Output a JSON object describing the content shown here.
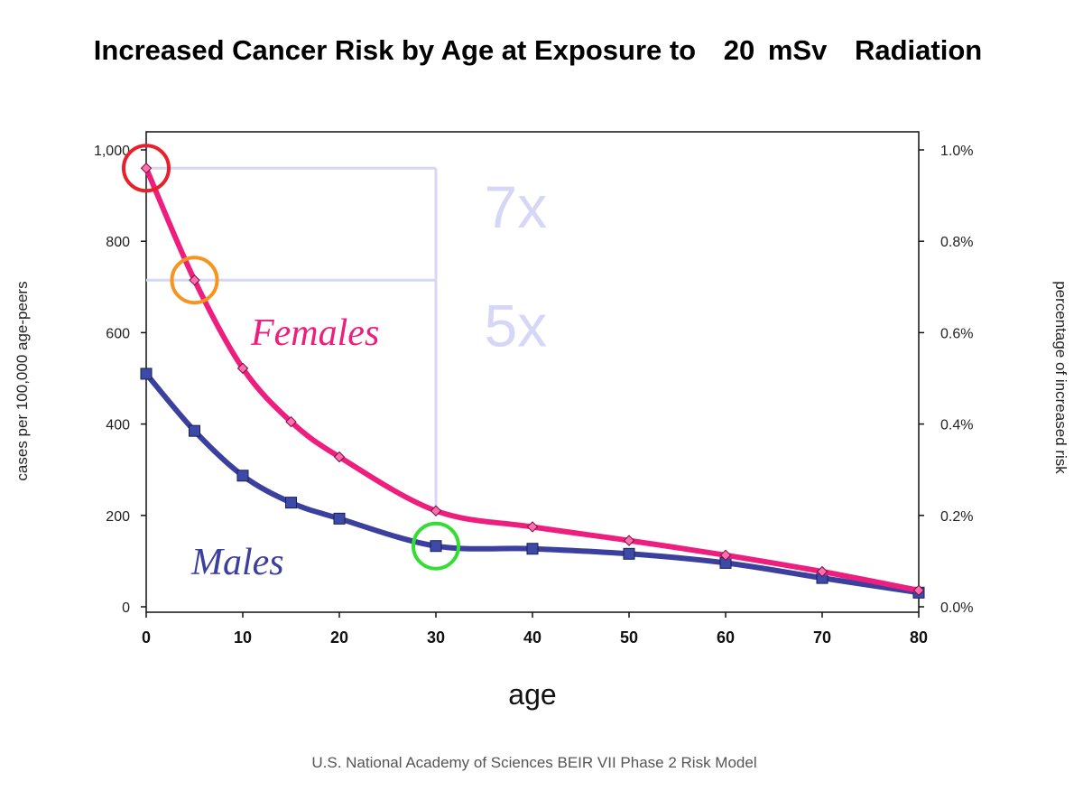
{
  "chart_data": {
    "type": "line",
    "title_parts": [
      "Increased Cancer Risk by Age at Exposure to",
      "20",
      "mSv",
      "Radiation"
    ],
    "xlabel": "age",
    "ylabel_left": "cases per 100,000 age-peers",
    "ylabel_right": "percentage of increased risk",
    "source": "U.S. National Academy of Sciences BEIR VII Phase 2 Risk Model",
    "xlim": [
      0,
      80
    ],
    "ylim": [
      0,
      1000
    ],
    "x_ticks": [
      "0",
      "10",
      "20",
      "30",
      "40",
      "50",
      "60",
      "70",
      "80"
    ],
    "y_left_ticks": [
      {
        "value": 0,
        "label": "0"
      },
      {
        "value": 200,
        "label": "200"
      },
      {
        "value": 400,
        "label": "400"
      },
      {
        "value": 600,
        "label": "600"
      },
      {
        "value": 800,
        "label": "800"
      },
      {
        "value": 1000,
        "label": "1,000"
      }
    ],
    "y_right_ticks": [
      {
        "value": 0,
        "label": "0.0%"
      },
      {
        "value": 200,
        "label": "0.2%"
      },
      {
        "value": 400,
        "label": "0.4%"
      },
      {
        "value": 600,
        "label": "0.6%"
      },
      {
        "value": 800,
        "label": "0.8%"
      },
      {
        "value": 1000,
        "label": "1.0%"
      }
    ],
    "series": [
      {
        "name": "Females",
        "color": "#ee1e7f",
        "marker": "diamond",
        "x": [
          0,
          5,
          10,
          15,
          20,
          30,
          40,
          50,
          60,
          70,
          80
        ],
        "y": [
          960,
          715,
          522,
          405,
          328,
          210,
          175,
          145,
          113,
          77,
          36
        ]
      },
      {
        "name": "Males",
        "color": "#3b3f9e",
        "marker": "square",
        "x": [
          0,
          5,
          10,
          15,
          20,
          30,
          40,
          50,
          60,
          70,
          80
        ],
        "y": [
          510,
          385,
          287,
          228,
          193,
          133,
          127,
          116,
          96,
          63,
          31
        ]
      }
    ],
    "annotations": {
      "reference_lines": {
        "color": "#d6d6f6",
        "y_levels": [
          960,
          715
        ],
        "x_from": 0,
        "x_at": 30,
        "y_bottom": 210
      },
      "multipliers": [
        {
          "text": "7x",
          "x": 35,
          "y": 830
        },
        {
          "text": "5x",
          "x": 35,
          "y": 570
        }
      ],
      "circles": [
        {
          "x": 0,
          "y": 960,
          "color": "#e8202a"
        },
        {
          "x": 5,
          "y": 715,
          "color": "#f7941d"
        },
        {
          "x": 30,
          "y": 133,
          "color": "#33dd33"
        }
      ]
    }
  }
}
